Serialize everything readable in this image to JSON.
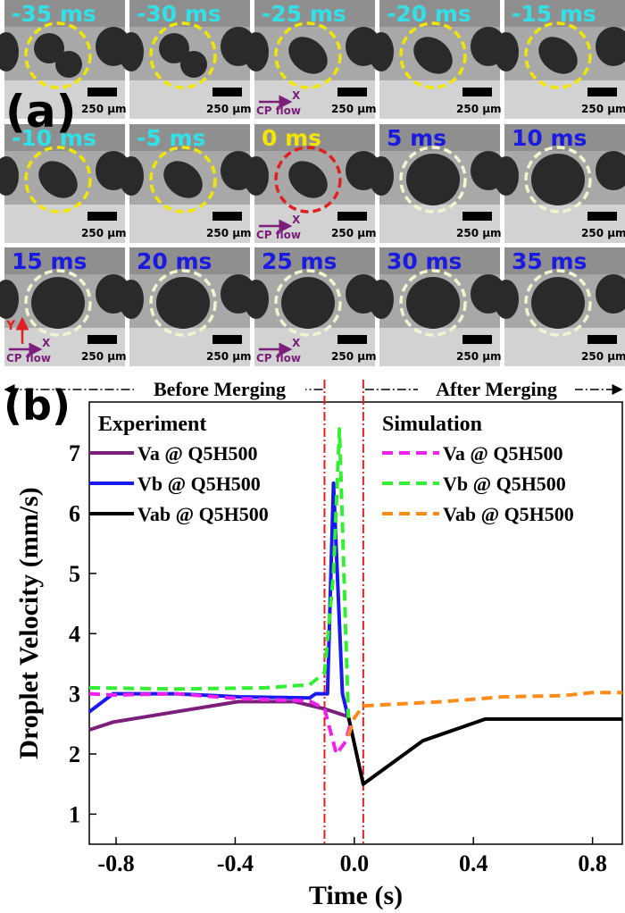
{
  "figure_a": {
    "label": "(a)",
    "scale_bar": "250 µm",
    "x_axis": "X",
    "y_axis": "Y",
    "flow_label": "CP flow",
    "panels": [
      {
        "time": "-35 ms",
        "time_color": "#33e0e8",
        "circle_color": "#f2e600"
      },
      {
        "time": "-30 ms",
        "time_color": "#33e0e8",
        "circle_color": "#f2e600"
      },
      {
        "time": "-25 ms",
        "time_color": "#33e0e8",
        "circle_color": "#f2e600",
        "flow_arrow": true
      },
      {
        "time": "-20 ms",
        "time_color": "#33e0e8",
        "circle_color": "#f2e600"
      },
      {
        "time": "-15 ms",
        "time_color": "#33e0e8",
        "circle_color": "#f2e600"
      },
      {
        "time": "-10 ms",
        "time_color": "#33e0e8",
        "circle_color": "#f2e600"
      },
      {
        "time": "-5 ms",
        "time_color": "#33e0e8",
        "circle_color": "#f2e600"
      },
      {
        "time": "0 ms",
        "time_color": "#f2e600",
        "circle_color": "#e02020",
        "flow_arrow": true
      },
      {
        "time": "5 ms",
        "time_color": "#1a1ae0",
        "circle_color": "#f4f4d0"
      },
      {
        "time": "10 ms",
        "time_color": "#1a1ae0",
        "circle_color": "#f4f4d0"
      },
      {
        "time": "15 ms",
        "time_color": "#1a1ae0",
        "circle_color": "#f4f4d0",
        "flow_arrow": true,
        "y_arrow": true
      },
      {
        "time": "20 ms",
        "time_color": "#1a1ae0",
        "circle_color": "#f4f4d0"
      },
      {
        "time": "25 ms",
        "time_color": "#1a1ae0",
        "circle_color": "#f4f4d0",
        "flow_arrow": true
      },
      {
        "time": "30 ms",
        "time_color": "#1a1ae0",
        "circle_color": "#f4f4d0"
      },
      {
        "time": "35 ms",
        "time_color": "#1a1ae0",
        "circle_color": "#f4f4d0"
      }
    ]
  },
  "chart_data": {
    "type": "line",
    "panel_label": "(b)",
    "before_label": "Before Merging",
    "after_label": "After Merging",
    "experiment_heading": "Experiment",
    "simulation_heading": "Simulation",
    "xlabel": "Time (s)",
    "ylabel": "Droplet Velocity (mm/s)",
    "xlim": [
      -0.89,
      0.9
    ],
    "ylim": [
      0.5,
      7.85
    ],
    "xticks": [
      -0.8,
      -0.4,
      {
        "value": 0,
        "label": "0.0"
      },
      0.4,
      0.8
    ],
    "yticks": [
      1,
      2,
      3,
      4,
      5,
      6,
      7
    ],
    "vlines": {
      "x": [
        -0.1,
        0.03
      ],
      "color": "#e02020"
    },
    "series": [
      {
        "name": "Va @ Q5H500",
        "color": "#7b1f7b",
        "style": "solid",
        "x": [
          -0.89,
          -0.81,
          -0.6,
          -0.39,
          -0.2,
          -0.1,
          -0.02
        ],
        "values": [
          2.4,
          2.53,
          2.7,
          2.87,
          2.87,
          2.75,
          2.62
        ]
      },
      {
        "name": "Vb @ Q5H500",
        "color": "#1a1aee",
        "style": "solid",
        "x": [
          -0.89,
          -0.81,
          -0.6,
          -0.39,
          -0.15,
          -0.13,
          -0.09,
          -0.07,
          -0.04,
          -0.02
        ],
        "values": [
          2.7,
          3.0,
          3.0,
          2.95,
          2.93,
          3.0,
          3.0,
          6.5,
          3.0,
          2.6
        ]
      },
      {
        "name": "Vab @ Q5H500",
        "color": "#000000",
        "style": "solid",
        "x": [
          -0.02,
          0.03,
          0.23,
          0.44,
          0.9
        ],
        "values": [
          2.62,
          1.5,
          2.22,
          2.58,
          2.58
        ]
      },
      {
        "name": "Va @ Q5H500",
        "color": "#ee22ee",
        "style": "dashed",
        "x": [
          -0.89,
          -0.81,
          -0.6,
          -0.39,
          -0.15,
          -0.1,
          -0.06,
          -0.03,
          -0.01
        ],
        "values": [
          3.0,
          2.98,
          3.0,
          2.92,
          2.88,
          2.75,
          2.0,
          2.2,
          2.55
        ]
      },
      {
        "name": "Vb @ Q5H500",
        "color": "#33ee33",
        "style": "dashed",
        "x": [
          -0.89,
          -0.6,
          -0.3,
          -0.15,
          -0.1,
          -0.07,
          -0.05,
          -0.02
        ],
        "values": [
          3.1,
          3.08,
          3.1,
          3.15,
          3.35,
          5.0,
          7.4,
          2.6
        ]
      },
      {
        "name": "Vab @ Q5H500",
        "color": "#ff8c1a",
        "style": "dashed",
        "x": [
          -0.02,
          0.0,
          0.03,
          0.3,
          0.5,
          0.7,
          0.8,
          0.9
        ],
        "values": [
          2.3,
          2.6,
          2.8,
          2.87,
          2.95,
          2.97,
          3.02,
          3.02
        ]
      }
    ]
  }
}
